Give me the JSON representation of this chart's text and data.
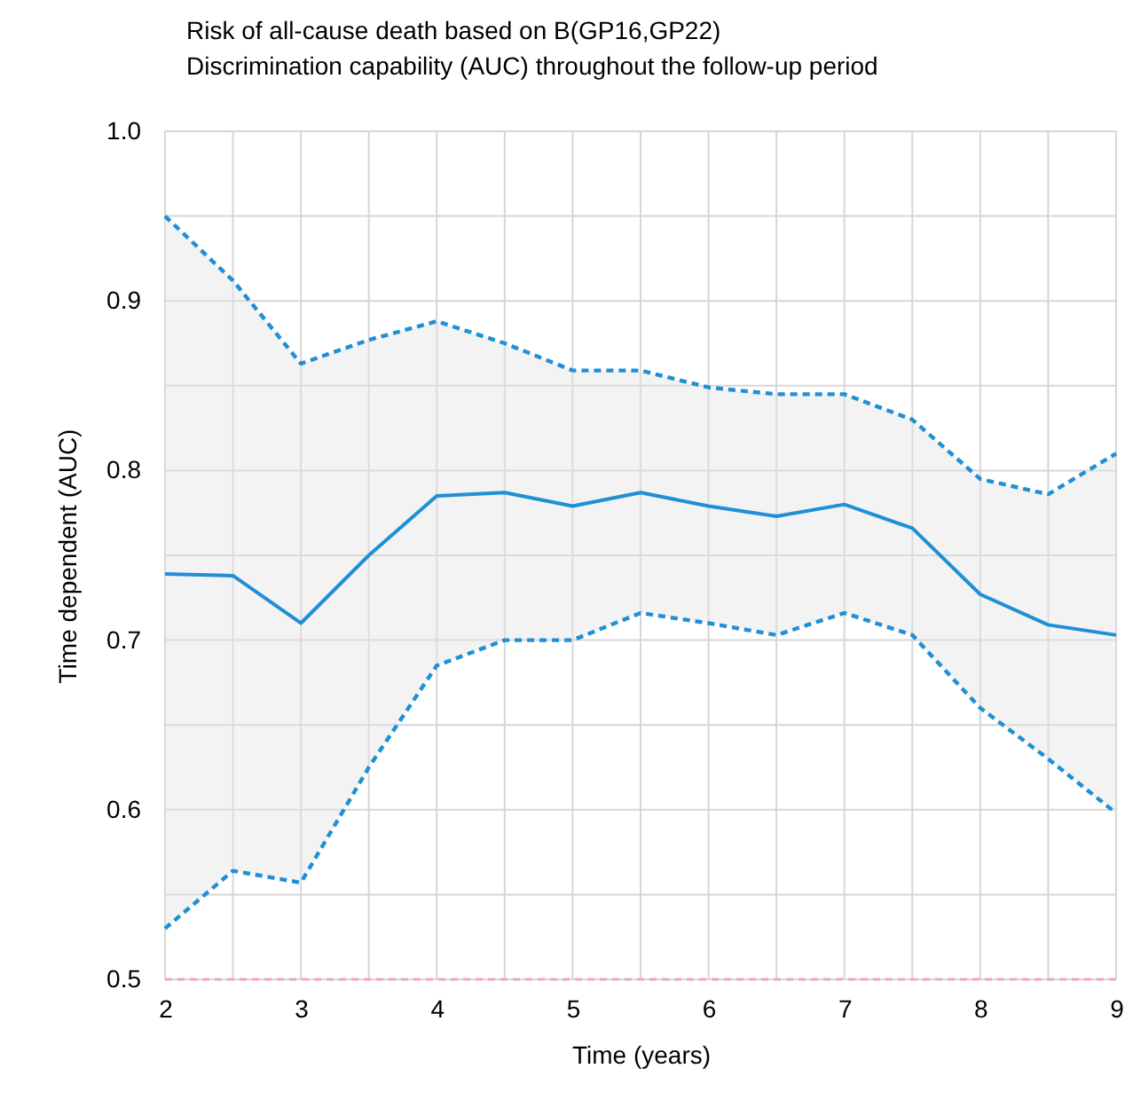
{
  "chart_data": {
    "type": "line",
    "title": "Risk of all-cause death based on B(GP16,GP22)",
    "subtitle": "Discrimination capability (AUC) throughout the follow-up period",
    "xlabel": "Time (years)",
    "ylabel": "Time dependent (AUC)",
    "x": [
      2,
      2.5,
      3,
      3.5,
      4,
      4.5,
      5,
      5.5,
      6,
      6.5,
      7,
      7.5,
      8,
      8.5,
      9
    ],
    "series": [
      {
        "color": "#1f8fd6",
        "values": [
          0.739,
          0.738,
          0.71,
          0.75,
          0.785,
          0.787,
          0.779,
          0.787,
          0.779,
          0.773,
          0.78,
          0.766,
          0.727,
          0.709,
          0.703
        ],
        "lower": [
          0.53,
          0.564,
          0.557,
          0.625,
          0.685,
          0.7,
          0.7,
          0.716,
          0.71,
          0.703,
          0.716,
          0.703,
          0.66,
          0.63,
          0.598
        ],
        "upper": [
          0.95,
          0.912,
          0.863,
          0.877,
          0.888,
          0.875,
          0.859,
          0.859,
          0.849,
          0.845,
          0.845,
          0.83,
          0.795,
          0.786,
          0.81
        ]
      },
      {
        "color": "#1f8fd6",
        "line_style": "dashed",
        "values": [
          0.53,
          0.564,
          0.557,
          0.625,
          0.685,
          0.7,
          0.7,
          0.716,
          0.71,
          0.703,
          0.716,
          0.703,
          0.66,
          0.63,
          0.598
        ]
      },
      {
        "color": "#1f8fd6",
        "line_style": "dashed",
        "values": [
          0.95,
          0.912,
          0.863,
          0.877,
          0.888,
          0.875,
          0.859,
          0.859,
          0.849,
          0.845,
          0.845,
          0.83,
          0.795,
          0.786,
          0.81
        ]
      }
    ],
    "xlim": [
      2,
      9
    ],
    "xticks": [
      2,
      {
        "value": 2.5,
        "label": null
      },
      3,
      {
        "value": 3.5,
        "label": null
      },
      4,
      {
        "value": 4.5,
        "label": null
      },
      5,
      {
        "value": 5.5,
        "label": null
      },
      6,
      {
        "value": 6.5,
        "label": null
      },
      7,
      {
        "value": 7.5,
        "label": null
      },
      8,
      {
        "value": 8.5,
        "label": null
      },
      9
    ],
    "ylim": [
      0.5,
      1.0
    ],
    "yticks": [
      0.5,
      {
        "value": 0.55,
        "label": null
      },
      0.6,
      {
        "value": 0.65,
        "label": null
      },
      0.7,
      {
        "value": 0.75,
        "label": null
      },
      0.8,
      {
        "value": 0.85,
        "label": null
      },
      0.9,
      {
        "value": 0.95,
        "label": null
      },
      {
        "value": 1.0,
        "label": "1.0"
      }
    ],
    "grid": true,
    "marker": "none",
    "line_style": "solid",
    "ref_lines": [
      {
        "axis": "y",
        "value": 0.5,
        "color": "#f4a6b4",
        "line_style": "dashed"
      }
    ]
  }
}
